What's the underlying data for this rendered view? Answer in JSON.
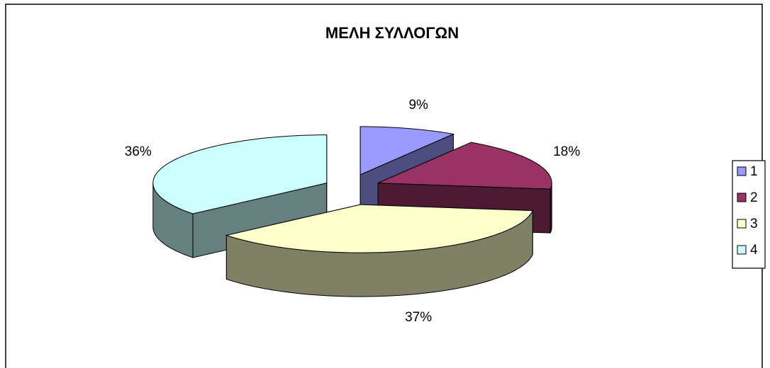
{
  "chart_data": {
    "type": "pie3d",
    "title": "ΜΕΛΗ ΣΥΛΛΟΓΩΝ",
    "categories": [
      "1",
      "2",
      "3",
      "4"
    ],
    "values": [
      9,
      18,
      37,
      36
    ],
    "value_labels": [
      "9%",
      "18%",
      "37%",
      "36%"
    ],
    "colors": [
      "#9999ff",
      "#993366",
      "#ffffcc",
      "#ccffff"
    ],
    "legend": "right"
  }
}
